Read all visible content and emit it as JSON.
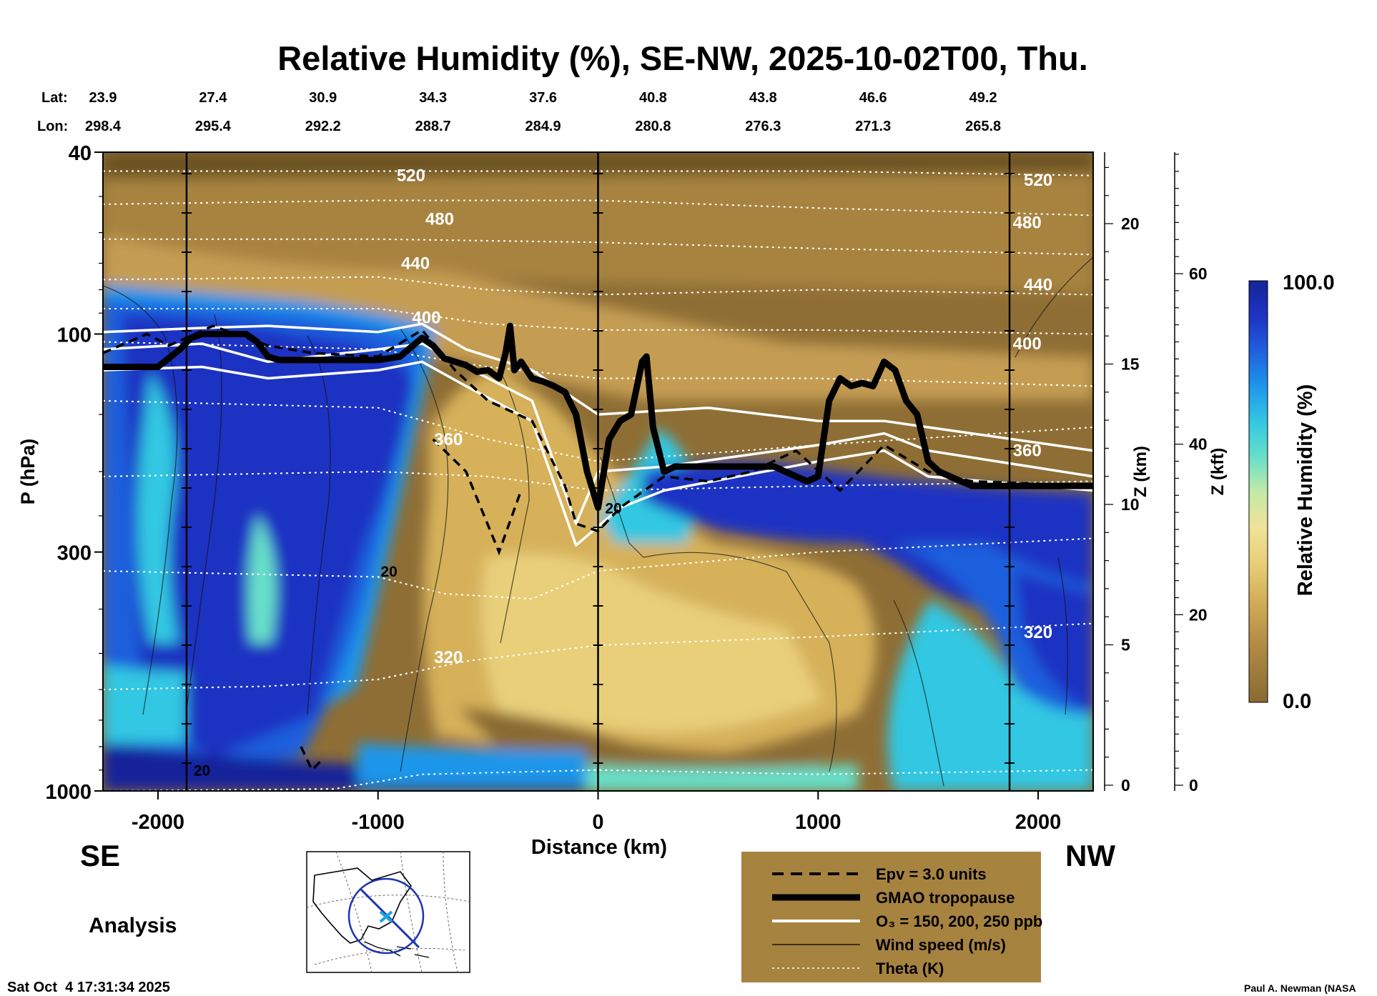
{
  "chart_data": {
    "type": "heatmap",
    "title": "Relative Humidity (%), SE-NW, 2025-10-02T00, Thu.",
    "xlabel": "Distance (km)",
    "ylabel": "P (hPa)",
    "right_axis1_label": "Z (km)",
    "right_axis2_label": "Z (kft)",
    "colorbar_label": "Relative Humidity (%)",
    "colorbar_max": "100.0",
    "colorbar_min": "0.0",
    "colorbar_colors": [
      "#8a6a32",
      "#a27e3e",
      "#bb9448",
      "#d6b15a",
      "#e9cf7a",
      "#f0e39a",
      "#c2eaa6",
      "#67dfc9",
      "#33c7e2",
      "#1e96ea",
      "#1f5fdd",
      "#1e33c2",
      "#15249a"
    ],
    "xlim": [
      -2250,
      2250
    ],
    "xticks": [
      -2000,
      -1000,
      0,
      1000,
      2000
    ],
    "xtick_labels": [
      "-2000",
      "-1000",
      "0",
      "1000",
      "2000"
    ],
    "ylim_hpa": [
      1000,
      40
    ],
    "yticks": [
      40,
      100,
      300,
      1000
    ],
    "ytick_labels": [
      "40",
      "100",
      "300",
      "1000"
    ],
    "z_km_ticks": [
      0,
      5,
      10,
      15,
      20
    ],
    "z_km_labels": [
      "0",
      "5",
      "10",
      "15",
      "20"
    ],
    "z_kft_ticks": [
      0,
      20,
      40,
      60
    ],
    "z_kft_labels": [
      "0",
      "20",
      "40",
      "60"
    ],
    "lat_label": "Lat:",
    "lon_label": "Lon:",
    "lats": [
      "23.9",
      "27.4",
      "30.9",
      "34.3",
      "37.6",
      "40.8",
      "43.8",
      "46.6",
      "49.2"
    ],
    "lons": [
      "298.4",
      "295.4",
      "292.2",
      "288.7",
      "284.9",
      "280.8",
      "276.3",
      "271.3",
      "265.8"
    ],
    "lat_lon_distances": [
      -2250,
      -1750,
      -1250,
      -750,
      -250,
      250,
      750,
      1250,
      1750
    ],
    "vertical_lines": [
      -1870,
      0,
      1870
    ],
    "theta_labels": [
      {
        "text": "520",
        "x": -850,
        "p": 45
      },
      {
        "text": "480",
        "x": -720,
        "p": 56
      },
      {
        "text": "440",
        "x": -830,
        "p": 70
      },
      {
        "text": "400",
        "x": -780,
        "p": 92
      },
      {
        "text": "360",
        "x": -680,
        "p": 170
      },
      {
        "text": "320",
        "x": -680,
        "p": 510
      },
      {
        "text": "520",
        "x": 2000,
        "p": 46
      },
      {
        "text": "480",
        "x": 1950,
        "p": 57
      },
      {
        "text": "440",
        "x": 2000,
        "p": 78
      },
      {
        "text": "400",
        "x": 1950,
        "p": 105
      },
      {
        "text": "360",
        "x": 1950,
        "p": 180
      },
      {
        "text": "320",
        "x": 2000,
        "p": 450
      }
    ],
    "wind_labels": [
      {
        "text": "20",
        "x": -950,
        "p": 330
      },
      {
        "text": "20",
        "x": 70,
        "p": 240
      },
      {
        "text": "20",
        "x": -1800,
        "p": 900
      }
    ],
    "theta_levels_K": [
      320,
      360,
      400,
      440,
      480,
      520
    ],
    "tropopause_hpa": {
      "x": [
        -2250,
        -2000,
        -1900,
        -1850,
        -1800,
        -1600,
        -1550,
        -1500,
        -1450,
        -1000,
        -900,
        -800,
        -750,
        -700,
        -600,
        -550,
        -500,
        -450,
        -420,
        -400,
        -380,
        -350,
        -300,
        -250,
        -200,
        -150,
        -100,
        -50,
        0,
        50,
        100,
        150,
        200,
        220,
        250,
        300,
        350,
        400,
        500,
        800,
        900,
        950,
        1000,
        1050,
        1100,
        1150,
        1200,
        1250,
        1300,
        1350,
        1400,
        1450,
        1500,
        1550,
        1600,
        1650,
        1700,
        1800,
        2000,
        2250
      ],
      "p": [
        118,
        118,
        108,
        102,
        100,
        100,
        104,
        112,
        114,
        114,
        112,
        102,
        106,
        113,
        117,
        121,
        120,
        125,
        110,
        96,
        120,
        115,
        125,
        127,
        130,
        134,
        150,
        200,
        240,
        170,
        155,
        150,
        115,
        112,
        160,
        200,
        195,
        195,
        195,
        195,
        205,
        210,
        205,
        140,
        125,
        130,
        128,
        130,
        115,
        120,
        140,
        150,
        190,
        200,
        205,
        210,
        215,
        215,
        215,
        215
      ]
    },
    "legend": [
      {
        "label": "Epv = 3.0 units",
        "style": "dashed"
      },
      {
        "label": "GMAO tropopause",
        "style": "thick"
      },
      {
        "label": "O₃ = 150, 200, 250 ppb",
        "style": "white"
      },
      {
        "label": "Wind speed (m/s)",
        "style": "thin"
      },
      {
        "label": "Theta (K)",
        "style": "dotted"
      }
    ],
    "left_direction": "SE",
    "right_direction": "NW"
  },
  "analysis_label": "Analysis",
  "timestamp": "Sat Oct  4 17:31:34 2025",
  "credit": "Paul A. Newman (NASA",
  "colors": {
    "legend_bg": "#a78340",
    "map_bg": "#ffffff",
    "map_circle": "#1c35b5",
    "map_marker": "#1aa4e0"
  },
  "map_icon": "globe-map-inset"
}
